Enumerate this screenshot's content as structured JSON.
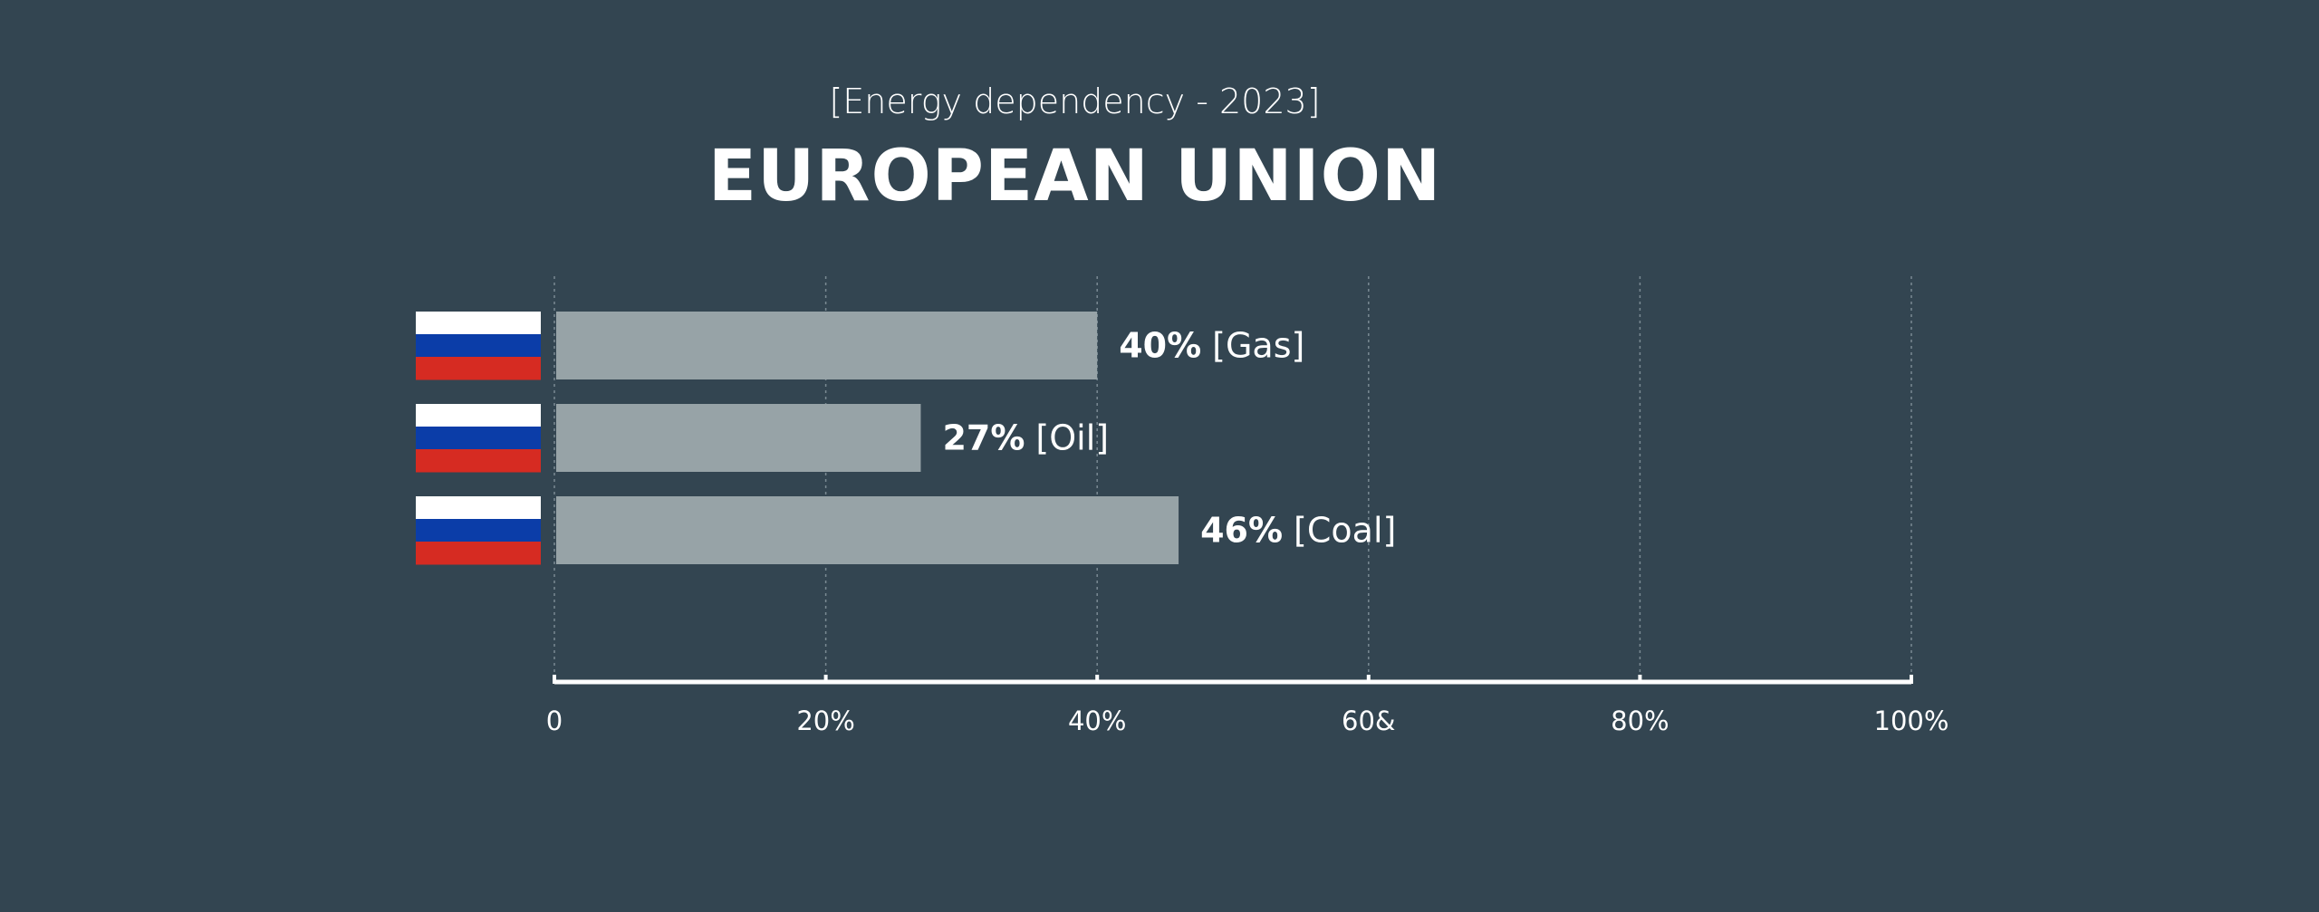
{
  "subtitle": "[Energy dependency - 2023]",
  "title": "EUROPEAN UNION",
  "colors": {
    "background": "#334551",
    "bar": "#97a3a7",
    "gridline": "#7a8a93",
    "axis": "#ffffff",
    "text": "#ffffff",
    "flag_white": "#ffffff",
    "flag_blue": "#0b3da8",
    "flag_red": "#d62b22"
  },
  "chart_data": {
    "type": "bar",
    "orientation": "horizontal",
    "categories": [
      "[Gas]",
      "[Oil]",
      "[Coal]"
    ],
    "values": [
      40,
      27,
      46
    ],
    "value_labels": [
      "40%",
      "27%",
      "46%"
    ],
    "row_icon": "russia-flag-icon",
    "xlim": [
      0,
      100
    ],
    "x_ticks": [
      0,
      20,
      40,
      60,
      80,
      100
    ],
    "x_tick_labels": [
      "0",
      "20%",
      "40%",
      "60&",
      "80%",
      "100%"
    ],
    "grid": "vertical-dotted",
    "legend": "none"
  }
}
